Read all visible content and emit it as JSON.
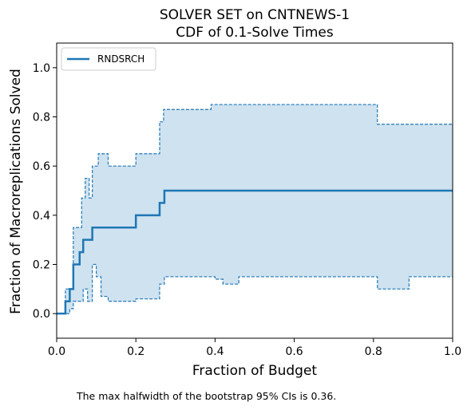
{
  "chart_data": {
    "type": "line",
    "title": "SOLVER SET on CNTNEWS-1",
    "subtitle": "CDF of 0.1-Solve Times",
    "xlabel": "Fraction of Budget",
    "ylabel": "Fraction of Macroreplications Solved",
    "xlim": [
      0,
      1
    ],
    "ylim": [
      -0.1,
      1.1
    ],
    "xticks": [
      0,
      0.2,
      0.4,
      0.6,
      0.8,
      1.0
    ],
    "xtick_labels": [
      "0.0",
      "0.2",
      "0.4",
      "0.6",
      "0.8",
      "1.0"
    ],
    "yticks": [
      0,
      0.2,
      0.4,
      0.6,
      0.8,
      1.0
    ],
    "ytick_labels": [
      "0.0",
      "0.2",
      "0.4",
      "0.6",
      "0.8",
      "1.0"
    ],
    "grid": false,
    "legend_position": "top-left",
    "color": "#1f77b4",
    "band_color": "#cfe2f0",
    "series": [
      {
        "name": "RNDSRCH",
        "style": "solid-step",
        "x": [
          0,
          0.022,
          0.033,
          0.042,
          0.058,
          0.067,
          0.09,
          0.2,
          0.26,
          0.272,
          1.0
        ],
        "y": [
          0,
          0.05,
          0.1,
          0.2,
          0.25,
          0.3,
          0.35,
          0.4,
          0.45,
          0.5,
          0.5
        ]
      },
      {
        "name": "upper-bound",
        "style": "dashed-step",
        "x": [
          0,
          0.022,
          0.042,
          0.063,
          0.072,
          0.082,
          0.09,
          0.105,
          0.13,
          0.2,
          0.26,
          0.27,
          0.39,
          0.47,
          0.81,
          1.0
        ],
        "y": [
          0,
          0.1,
          0.35,
          0.47,
          0.55,
          0.47,
          0.6,
          0.65,
          0.6,
          0.65,
          0.78,
          0.83,
          0.85,
          0.85,
          0.77,
          0.77
        ]
      },
      {
        "name": "lower-bound",
        "style": "dashed-step",
        "x": [
          0,
          0.022,
          0.033,
          0.042,
          0.067,
          0.078,
          0.09,
          0.1,
          0.112,
          0.13,
          0.2,
          0.26,
          0.272,
          0.4,
          0.42,
          0.46,
          0.81,
          0.89,
          1.0
        ],
        "y": [
          0,
          0,
          0.02,
          0.05,
          0.1,
          0.05,
          0.2,
          0.15,
          0.07,
          0.05,
          0.06,
          0.12,
          0.15,
          0.14,
          0.12,
          0.15,
          0.1,
          0.15,
          0.15
        ]
      }
    ],
    "legend": [
      {
        "label": "RNDSRCH"
      }
    ],
    "footnote": "The max halfwidth of the bootstrap 95% CIs is 0.36."
  }
}
